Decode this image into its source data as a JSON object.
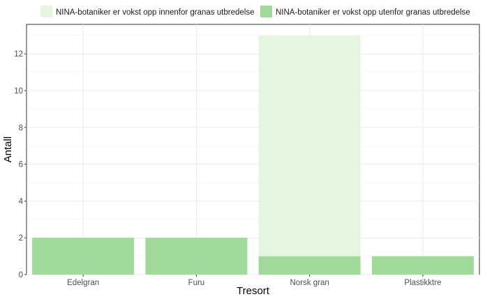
{
  "chart_data": {
    "type": "bar",
    "stacked": true,
    "xlabel": "Tresort",
    "ylabel": "Antall",
    "categories": [
      "Edelgran",
      "Furu",
      "Norsk gran",
      "Plastikktre"
    ],
    "series": [
      {
        "name": "NINA-botaniker er vokst opp innenfor granas utbredelse",
        "values": [
          0,
          0,
          12,
          0
        ],
        "color": "#e5f5e0"
      },
      {
        "name": "NINA-botaniker er vokst opp utenfor granas utbredelse",
        "values": [
          2,
          2,
          1,
          1
        ],
        "color": "#a1d99b"
      }
    ],
    "ylim": [
      0,
      13.6
    ],
    "yticks": [
      0,
      2,
      4,
      6,
      8,
      10,
      12
    ],
    "grid": true,
    "legend_position": "top"
  }
}
